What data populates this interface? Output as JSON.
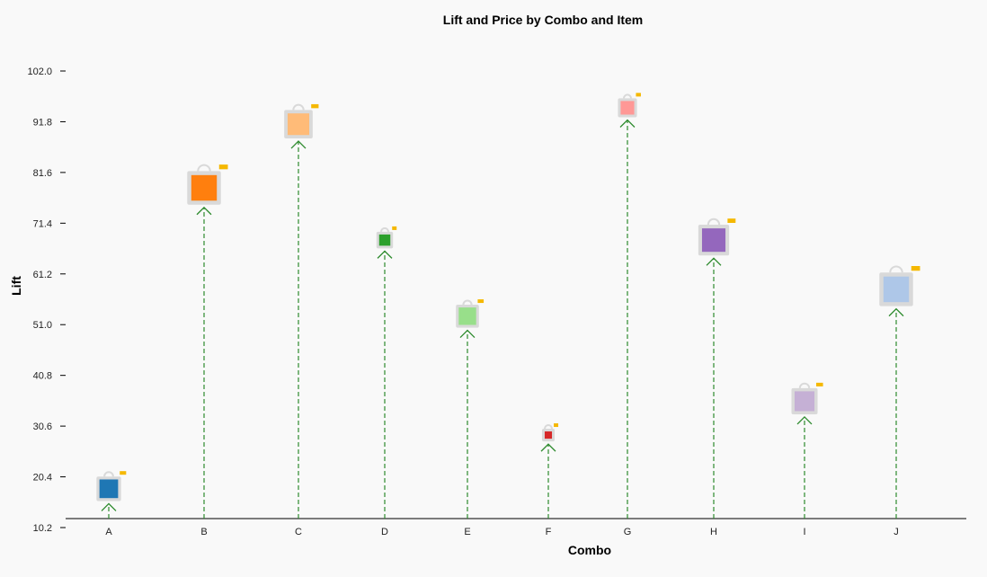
{
  "chart_data": {
    "type": "scatter",
    "title": "Lift and Price by Combo and Item",
    "xlabel": "Combo",
    "ylabel": "Lift",
    "categories": [
      "A",
      "B",
      "C",
      "D",
      "E",
      "F",
      "G",
      "H",
      "I",
      "J"
    ],
    "y_ticks": [
      "10.2",
      "20.4",
      "30.6",
      "40.8",
      "51.0",
      "61.2",
      "71.4",
      "81.6",
      "91.8",
      "102.0"
    ],
    "ylim": [
      10.2,
      102.0
    ],
    "points": [
      {
        "category": "A",
        "lift": 18.0,
        "color": "#1f77b4",
        "price_scale": 0.62
      },
      {
        "category": "B",
        "lift": 78.5,
        "color": "#ff7f0e",
        "price_scale": 0.85
      },
      {
        "category": "C",
        "lift": 91.3,
        "color": "#ffbb78",
        "price_scale": 0.72
      },
      {
        "category": "D",
        "lift": 68.0,
        "color": "#2ca02c",
        "price_scale": 0.42
      },
      {
        "category": "E",
        "lift": 52.7,
        "color": "#98df8a",
        "price_scale": 0.58
      },
      {
        "category": "F",
        "lift": 28.8,
        "color": "#d62728",
        "price_scale": 0.32
      },
      {
        "category": "G",
        "lift": 94.6,
        "color": "#ff9896",
        "price_scale": 0.48
      },
      {
        "category": "H",
        "lift": 68.0,
        "color": "#9467bd",
        "price_scale": 0.78
      },
      {
        "category": "I",
        "lift": 35.6,
        "color": "#c5b0d5",
        "price_scale": 0.66
      },
      {
        "category": "J",
        "lift": 58.1,
        "color": "#aec7e8",
        "price_scale": 0.85
      }
    ],
    "stem_color": "#2e8b2e",
    "bag_outline_color": "#d9d9d9",
    "tag_color": "#f5b800",
    "grid": false,
    "legend": "none"
  }
}
